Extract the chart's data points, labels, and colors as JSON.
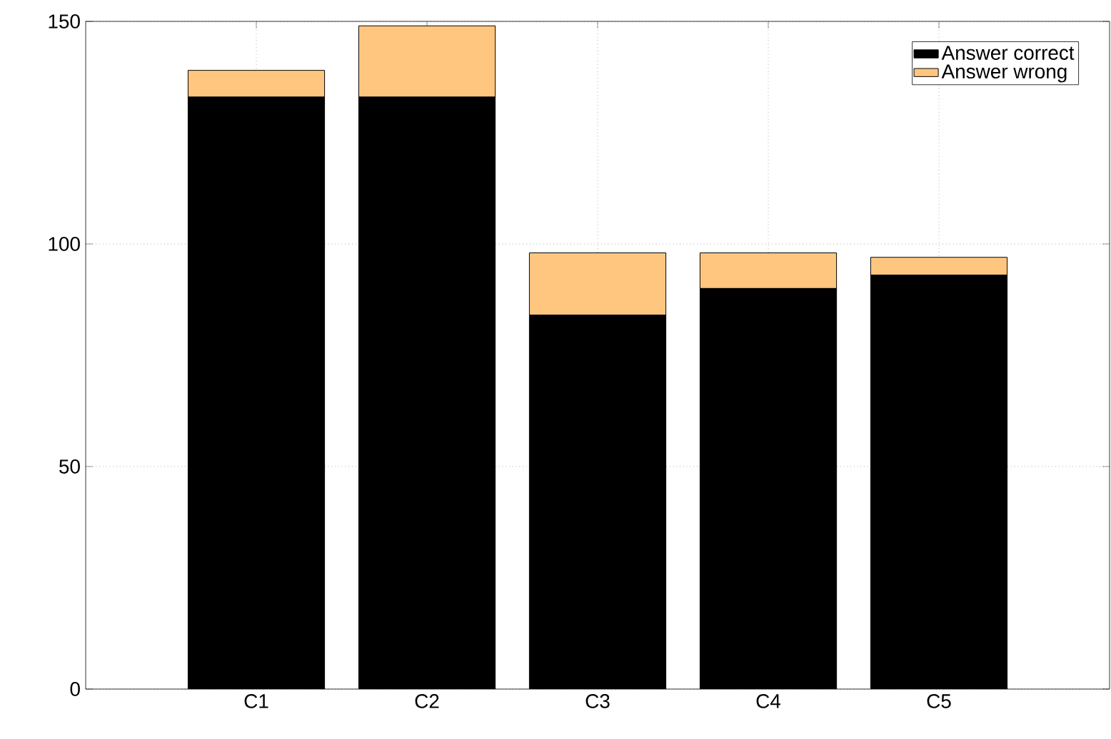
{
  "chart_data": {
    "type": "bar",
    "stacked": true,
    "categories": [
      "C1",
      "C2",
      "C3",
      "C4",
      "C5"
    ],
    "series": [
      {
        "name": "Answer correct",
        "color": "#000000",
        "values": [
          133,
          133,
          84,
          90,
          93
        ]
      },
      {
        "name": "Answer wrong",
        "color": "#ffc67f",
        "values": [
          6,
          16,
          14,
          8,
          4
        ]
      }
    ],
    "ylim": [
      0,
      150
    ],
    "yticks": [
      0,
      50,
      100,
      150
    ],
    "grid": true,
    "legend": "top right"
  }
}
